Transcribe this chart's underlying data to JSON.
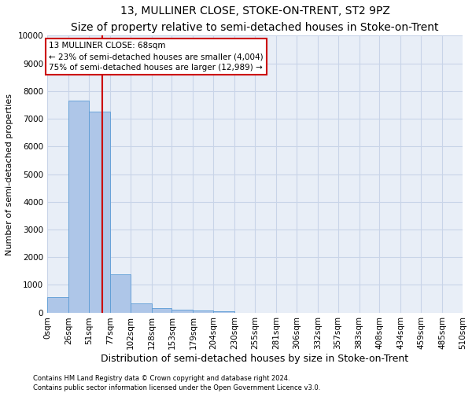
{
  "title": "13, MULLINER CLOSE, STOKE-ON-TRENT, ST2 9PZ",
  "subtitle": "Size of property relative to semi-detached houses in Stoke-on-Trent",
  "xlabel": "Distribution of semi-detached houses by size in Stoke-on-Trent",
  "ylabel": "Number of semi-detached properties",
  "footer": "Contains HM Land Registry data © Crown copyright and database right 2024.\nContains public sector information licensed under the Open Government Licence v3.0.",
  "bar_edges": [
    0,
    26,
    51,
    77,
    102,
    128,
    153,
    179,
    204,
    230,
    255,
    281,
    306,
    332,
    357,
    383,
    408,
    434,
    459,
    485,
    510
  ],
  "bar_heights": [
    560,
    7650,
    7270,
    1370,
    320,
    155,
    110,
    80,
    40,
    0,
    0,
    0,
    0,
    0,
    0,
    0,
    0,
    0,
    0,
    0
  ],
  "bar_color": "#aec6e8",
  "bar_edge_color": "#5b9bd5",
  "vline_x": 68,
  "vline_color": "#cc0000",
  "annotation_title": "13 MULLINER CLOSE: 68sqm",
  "annotation_line1": "← 23% of semi-detached houses are smaller (4,004)",
  "annotation_line2": "75% of semi-detached houses are larger (12,989) →",
  "annotation_box_color": "#cc0000",
  "ylim": [
    0,
    10000
  ],
  "yticks": [
    0,
    1000,
    2000,
    3000,
    4000,
    5000,
    6000,
    7000,
    8000,
    9000,
    10000
  ],
  "xtick_labels": [
    "0sqm",
    "26sqm",
    "51sqm",
    "77sqm",
    "102sqm",
    "128sqm",
    "153sqm",
    "179sqm",
    "204sqm",
    "230sqm",
    "255sqm",
    "281sqm",
    "306sqm",
    "332sqm",
    "357sqm",
    "383sqm",
    "408sqm",
    "434sqm",
    "459sqm",
    "485sqm",
    "510sqm"
  ],
  "grid_color": "#c8d4e8",
  "bg_color": "#e8eef7",
  "title_fontsize": 10,
  "subtitle_fontsize": 9,
  "ylabel_fontsize": 8,
  "xlabel_fontsize": 9,
  "tick_fontsize": 7.5,
  "annot_fontsize": 7.5,
  "footer_fontsize": 6
}
